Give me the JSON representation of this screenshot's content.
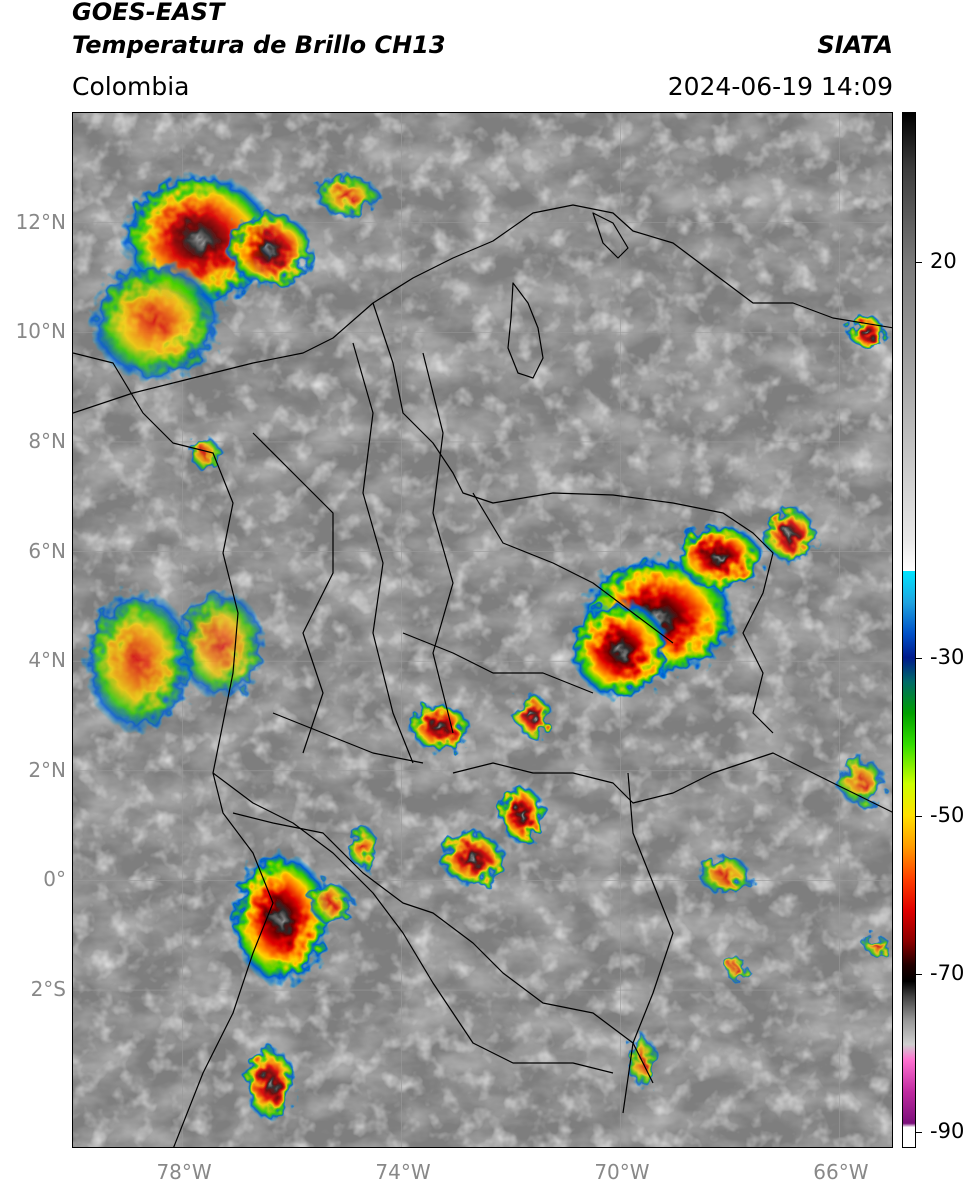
{
  "header": {
    "satellite": "GOES-EAST",
    "product": "Temperatura de Brillo CH13",
    "region": "Colombia",
    "agency": "SIATA",
    "timestamp": "2024-06-19 14:09"
  },
  "map": {
    "lon_range": [
      -80,
      -65
    ],
    "lat_range": [
      -4.9,
      14
    ],
    "lat_ticks": [
      {
        "value": 12,
        "label": "12°N"
      },
      {
        "value": 10,
        "label": "10°N"
      },
      {
        "value": 8,
        "label": "8°N"
      },
      {
        "value": 6,
        "label": "6°N"
      },
      {
        "value": 4,
        "label": "4°N"
      },
      {
        "value": 2,
        "label": "2°N"
      },
      {
        "value": 0,
        "label": "0°"
      },
      {
        "value": -2,
        "label": "2°S"
      }
    ],
    "lon_ticks": [
      {
        "value": -78,
        "label": "78°W"
      },
      {
        "value": -74,
        "label": "74°W"
      },
      {
        "value": -70,
        "label": "70°W"
      },
      {
        "value": -66,
        "label": "66°W"
      }
    ],
    "storm_cells": [
      {
        "lon": -77.7,
        "lat": 11.7,
        "rx": 1.4,
        "ry": 1.2,
        "intensity": 0.75
      },
      {
        "lon": -76.4,
        "lat": 11.5,
        "rx": 0.8,
        "ry": 0.7,
        "intensity": 0.65
      },
      {
        "lon": -78.5,
        "lat": 10.2,
        "rx": 1.2,
        "ry": 1.1,
        "intensity": 0.55
      },
      {
        "lon": -75.0,
        "lat": 12.5,
        "rx": 0.6,
        "ry": 0.4,
        "intensity": 0.5
      },
      {
        "lon": -78.8,
        "lat": 4.0,
        "rx": 1.0,
        "ry": 1.3,
        "intensity": 0.5
      },
      {
        "lon": -77.3,
        "lat": 4.3,
        "rx": 0.8,
        "ry": 1.0,
        "intensity": 0.35
      },
      {
        "lon": -69.3,
        "lat": 4.8,
        "rx": 1.4,
        "ry": 1.1,
        "intensity": 0.95
      },
      {
        "lon": -70.0,
        "lat": 4.2,
        "rx": 0.9,
        "ry": 0.9,
        "intensity": 0.9
      },
      {
        "lon": -68.2,
        "lat": 5.9,
        "rx": 0.8,
        "ry": 0.6,
        "intensity": 0.85
      },
      {
        "lon": -66.9,
        "lat": 6.3,
        "rx": 0.5,
        "ry": 0.5,
        "intensity": 0.6
      },
      {
        "lon": -76.2,
        "lat": -0.7,
        "rx": 0.9,
        "ry": 1.2,
        "intensity": 0.9
      },
      {
        "lon": -76.4,
        "lat": -3.7,
        "rx": 0.45,
        "ry": 0.7,
        "intensity": 0.7
      },
      {
        "lon": -73.3,
        "lat": 2.8,
        "rx": 0.55,
        "ry": 0.45,
        "intensity": 0.7
      },
      {
        "lon": -71.6,
        "lat": 3.0,
        "rx": 0.35,
        "ry": 0.4,
        "intensity": 0.6
      },
      {
        "lon": -71.8,
        "lat": 1.2,
        "rx": 0.4,
        "ry": 0.55,
        "intensity": 0.75
      },
      {
        "lon": -72.7,
        "lat": 0.4,
        "rx": 0.6,
        "ry": 0.5,
        "intensity": 0.65
      },
      {
        "lon": -74.7,
        "lat": 0.6,
        "rx": 0.3,
        "ry": 0.4,
        "intensity": 0.55
      },
      {
        "lon": -68.1,
        "lat": 0.1,
        "rx": 0.5,
        "ry": 0.35,
        "intensity": 0.5
      },
      {
        "lon": -65.6,
        "lat": 1.8,
        "rx": 0.45,
        "ry": 0.45,
        "intensity": 0.45
      },
      {
        "lon": -65.5,
        "lat": 10.0,
        "rx": 0.35,
        "ry": 0.3,
        "intensity": 0.7
      },
      {
        "lon": -77.6,
        "lat": 7.8,
        "rx": 0.3,
        "ry": 0.3,
        "intensity": 0.5
      },
      {
        "lon": -69.6,
        "lat": -3.3,
        "rx": 0.25,
        "ry": 0.5,
        "intensity": 0.45
      },
      {
        "lon": -67.9,
        "lat": -1.6,
        "rx": 0.25,
        "ry": 0.2,
        "intensity": 0.4
      },
      {
        "lon": -65.3,
        "lat": -1.2,
        "rx": 0.25,
        "ry": 0.2,
        "intensity": 0.45
      },
      {
        "lon": -75.3,
        "lat": -0.4,
        "rx": 0.4,
        "ry": 0.4,
        "intensity": 0.55
      }
    ]
  },
  "colorbar": {
    "ticks": [
      {
        "value": 20,
        "label": "20"
      },
      {
        "value": -30,
        "label": "-30"
      },
      {
        "value": -50,
        "label": "-50"
      },
      {
        "value": -70,
        "label": "-70"
      },
      {
        "value": -90,
        "label": "-90"
      }
    ],
    "range": [
      -92,
      39
    ]
  }
}
